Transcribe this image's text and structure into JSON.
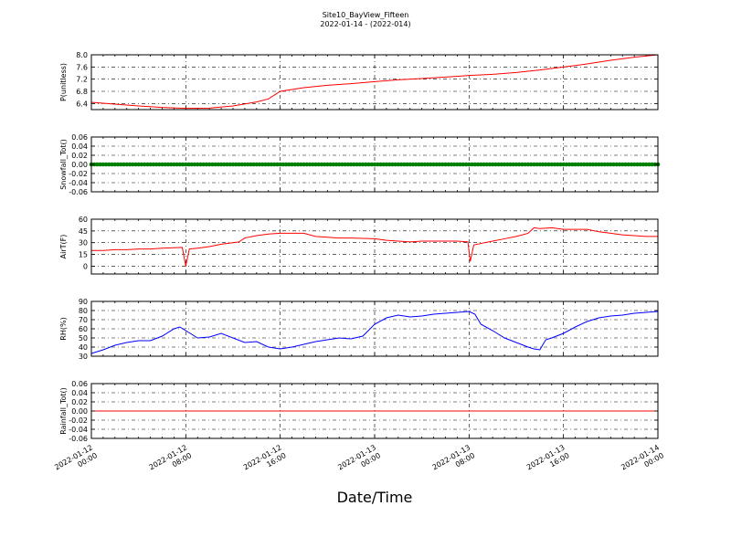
{
  "title": "Site10_BayView_Fifteen",
  "subtitle": "2022-01-14 - (2022-014)",
  "xlabel": "Date/Time",
  "x_ticks": [
    [
      "2022-01-12",
      "00:00"
    ],
    [
      "2022-01-12",
      "08:00"
    ],
    [
      "2022-01-12",
      "16:00"
    ],
    [
      "2022-01-13",
      "00:00"
    ],
    [
      "2022-01-13",
      "08:00"
    ],
    [
      "2022-01-13",
      "16:00"
    ],
    [
      "2022-01-14",
      "00:00"
    ]
  ],
  "chart_data": [
    {
      "type": "line",
      "ylabel": "P(unitless)",
      "ylim": [
        6.2,
        8.0
      ],
      "yticks": [
        6.4,
        6.8,
        7.2,
        7.6,
        8.0
      ],
      "ytick_labels": [
        "6.4",
        "6.8",
        "7.2",
        "7.6",
        "8.0"
      ],
      "color": "#ff0000",
      "marker": "none",
      "grid": true,
      "x_hours": [
        0,
        2,
        4,
        6,
        8,
        10,
        12,
        14,
        15,
        16,
        18,
        20,
        22,
        24,
        26,
        28,
        30,
        32,
        34,
        36,
        38,
        40,
        42,
        44,
        46,
        48
      ],
      "y": [
        6.44,
        6.38,
        6.32,
        6.27,
        6.24,
        6.25,
        6.32,
        6.45,
        6.55,
        6.8,
        6.92,
        7.0,
        7.05,
        7.12,
        7.18,
        7.22,
        7.27,
        7.32,
        7.36,
        7.42,
        7.5,
        7.6,
        7.7,
        7.82,
        7.92,
        8.0
      ]
    },
    {
      "type": "line",
      "ylabel": "Snowfall_Tot()",
      "ylim": [
        -0.06,
        0.06
      ],
      "yticks": [
        -0.06,
        -0.04,
        -0.02,
        0.0,
        0.02,
        0.04,
        0.06
      ],
      "ytick_labels": [
        "-0.06",
        "-0.04",
        "-0.02",
        "0.00",
        "0.02",
        "0.04",
        "0.06"
      ],
      "color": "#008000",
      "marker": "dots",
      "grid": true,
      "x_hours": [
        0,
        48
      ],
      "y": [
        0,
        0
      ]
    },
    {
      "type": "line",
      "ylabel": "AirT(F)",
      "ylim": [
        -10,
        60
      ],
      "yticks": [
        0,
        15,
        30,
        45,
        60
      ],
      "ytick_labels": [
        "0",
        "15",
        "30",
        "45",
        "60"
      ],
      "color": "#ff0000",
      "marker": "none",
      "grid": true,
      "x_hours": [
        0,
        1,
        2,
        3,
        4,
        5,
        6,
        7.7,
        8.0,
        8.3,
        9,
        10,
        11,
        12,
        12.5,
        13,
        14,
        15,
        16,
        17,
        18,
        19,
        20,
        21,
        22,
        23,
        24,
        25,
        26,
        27,
        28,
        29,
        30,
        31,
        31.9,
        32.1,
        32.4,
        33,
        34,
        35,
        36,
        37,
        37.5,
        38,
        39,
        40,
        41,
        42,
        43,
        44,
        45,
        46,
        47,
        48
      ],
      "y": [
        20,
        20,
        21,
        21,
        22,
        22,
        23,
        24,
        0,
        22,
        23,
        25,
        28,
        30,
        31,
        36,
        39,
        41,
        42,
        42,
        42,
        38,
        37,
        36,
        36,
        35.5,
        35,
        33,
        32,
        31,
        32,
        32,
        32,
        32,
        31,
        6,
        27,
        29,
        32,
        35,
        38,
        42,
        49,
        48,
        49,
        47,
        47,
        47,
        44,
        42,
        40,
        39,
        38,
        38
      ]
    },
    {
      "type": "line",
      "ylabel": "RH(%)",
      "ylim": [
        30,
        90
      ],
      "yticks": [
        30,
        40,
        50,
        60,
        70,
        80,
        90
      ],
      "ytick_labels": [
        "30",
        "40",
        "50",
        "60",
        "70",
        "80",
        "90"
      ],
      "color": "#0000ff",
      "marker": "none",
      "grid": true,
      "x_hours": [
        0,
        1,
        2,
        3,
        4,
        5,
        6,
        7,
        7.5,
        8,
        9,
        10,
        11,
        12,
        13,
        14,
        15,
        16,
        17,
        18,
        19,
        20,
        21,
        22,
        23,
        24,
        25,
        26,
        27,
        28,
        29,
        30,
        31,
        32,
        32.5,
        33,
        34,
        35,
        36,
        37,
        37.5,
        38,
        38.5,
        39,
        40,
        41,
        42,
        43,
        44,
        45,
        46,
        47,
        48
      ],
      "y": [
        33,
        37,
        42,
        45,
        47,
        47,
        52,
        60,
        62,
        58,
        50,
        51,
        55,
        50,
        45,
        46,
        40,
        38,
        40,
        43,
        46,
        48,
        50,
        49,
        52,
        65,
        72,
        75,
        73,
        74,
        76,
        77,
        78,
        79,
        76,
        65,
        58,
        50,
        45,
        40,
        38,
        37,
        48,
        50,
        55,
        62,
        68,
        72,
        74,
        75,
        77,
        78,
        79
      ]
    },
    {
      "type": "line",
      "ylabel": "Rainfall_Tot()",
      "ylim": [
        -0.06,
        0.06
      ],
      "yticks": [
        -0.06,
        -0.04,
        -0.02,
        0.0,
        0.02,
        0.04,
        0.06
      ],
      "ytick_labels": [
        "-0.06",
        "-0.04",
        "-0.02",
        "0.00",
        "0.02",
        "0.04",
        "0.06"
      ],
      "color": "#ff0000",
      "marker": "none",
      "grid": true,
      "x_hours": [
        0,
        48
      ],
      "y": [
        0,
        0
      ]
    }
  ]
}
